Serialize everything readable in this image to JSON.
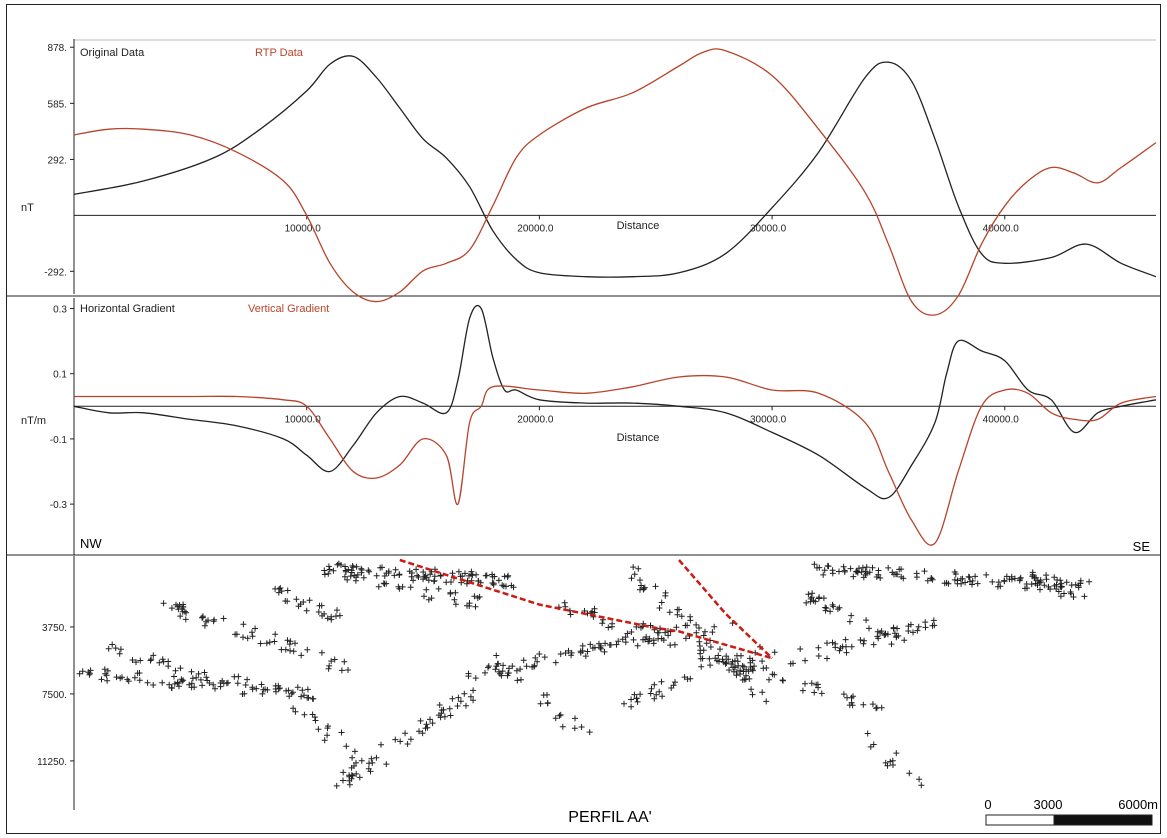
{
  "figure": {
    "caption": "PERFIL AA'",
    "left_label": "NW",
    "right_label": "SE",
    "scale_bar": {
      "ticks": [
        "0",
        "3000",
        "6000m"
      ]
    },
    "colors": {
      "black": "#222222",
      "red": "#b8432b",
      "fault": "#cc1b12"
    }
  },
  "chart_data": [
    {
      "type": "line",
      "xlabel": "Distance",
      "ylabel": "nT",
      "xlim": [
        0,
        46500
      ],
      "ylim": [
        -400,
        900
      ],
      "x_ticks": [
        10000,
        20000,
        30000,
        40000
      ],
      "x_tick_labels": [
        "10000.0",
        "20000.0",
        "30000.0",
        "40000.0"
      ],
      "y_ticks": [
        878,
        585,
        292,
        -292
      ],
      "y_tick_labels": [
        "878.",
        "585.",
        "292.",
        "-292."
      ],
      "series": [
        {
          "name": "Original Data",
          "color": "#222222",
          "x": [
            0,
            3000,
            6000,
            8000,
            10000,
            11000,
            12000,
            13000,
            14000,
            15000,
            16000,
            17000,
            18000,
            19000,
            20000,
            22000,
            24000,
            26000,
            28000,
            30000,
            32000,
            34000,
            35000,
            36000,
            37000,
            38000,
            39000,
            40000,
            42000,
            43500,
            45000,
            46500
          ],
          "y": [
            110,
            180,
            300,
            450,
            650,
            790,
            830,
            720,
            560,
            400,
            300,
            150,
            -80,
            -230,
            -300,
            -320,
            -320,
            -300,
            -200,
            40,
            330,
            720,
            800,
            700,
            400,
            50,
            -200,
            -250,
            -220,
            -150,
            -250,
            -320
          ]
        },
        {
          "name": "RTP Data",
          "color": "#b8432b",
          "x": [
            0,
            1500,
            3000,
            5000,
            7000,
            9000,
            10000,
            11000,
            12000,
            13000,
            14000,
            15000,
            16000,
            17000,
            18000,
            19000,
            20000,
            22000,
            24000,
            26000,
            27000,
            28000,
            30000,
            32000,
            34000,
            35000,
            36000,
            37000,
            38000,
            39000,
            40000,
            41000,
            42000,
            43000,
            44000,
            45000,
            46500
          ],
          "y": [
            420,
            450,
            450,
            420,
            330,
            180,
            0,
            -250,
            -400,
            -450,
            -400,
            -290,
            -250,
            -180,
            50,
            300,
            420,
            560,
            640,
            780,
            850,
            860,
            730,
            450,
            120,
            -150,
            -450,
            -520,
            -420,
            -150,
            50,
            180,
            250,
            220,
            170,
            250,
            380
          ]
        }
      ]
    },
    {
      "type": "line",
      "xlabel": "Distance",
      "ylabel": "nT/m",
      "xlim": [
        0,
        46500
      ],
      "ylim": [
        -0.45,
        0.32
      ],
      "x_ticks": [
        10000,
        20000,
        30000,
        40000
      ],
      "x_tick_labels": [
        "10000.0",
        "20000.0",
        "30000.0",
        "40000.0"
      ],
      "y_ticks": [
        0.3,
        0.1,
        -0.1,
        -0.3
      ],
      "y_tick_labels": [
        "0.3",
        "0.1",
        "-0.1",
        "-0.3"
      ],
      "series": [
        {
          "name": "Horizontal Gradient",
          "color": "#222222",
          "x": [
            0,
            1500,
            3000,
            5000,
            7000,
            9000,
            10000,
            11000,
            12000,
            13000,
            14000,
            15000,
            16000,
            16500,
            17000,
            17500,
            18000,
            18500,
            19000,
            20000,
            22000,
            24000,
            26000,
            28000,
            30000,
            32000,
            34000,
            35000,
            36000,
            37000,
            37500,
            38000,
            39000,
            40000,
            41000,
            42000,
            43000,
            44000,
            45000,
            46500
          ],
          "y": [
            0.0,
            -0.02,
            -0.02,
            -0.04,
            -0.06,
            -0.1,
            -0.15,
            -0.2,
            -0.12,
            -0.02,
            0.03,
            0.01,
            -0.02,
            0.08,
            0.27,
            0.3,
            0.15,
            0.05,
            0.05,
            0.02,
            0.01,
            0.01,
            0.0,
            -0.02,
            -0.08,
            -0.15,
            -0.25,
            -0.28,
            -0.18,
            -0.05,
            0.1,
            0.2,
            0.17,
            0.14,
            0.05,
            0.02,
            -0.08,
            -0.02,
            0.0,
            0.02
          ]
        },
        {
          "name": "Vertical Gradient",
          "color": "#b8432b",
          "x": [
            0,
            1500,
            3000,
            5000,
            7000,
            9000,
            10000,
            11000,
            12000,
            13000,
            14000,
            15000,
            16000,
            16500,
            17000,
            17500,
            18000,
            20000,
            22000,
            24000,
            26000,
            28000,
            30000,
            32000,
            34000,
            35000,
            36000,
            37000,
            38000,
            39000,
            40000,
            41000,
            42000,
            43000,
            44000,
            45000,
            46500
          ],
          "y": [
            0.03,
            0.03,
            0.03,
            0.03,
            0.03,
            0.02,
            0.0,
            -0.1,
            -0.2,
            -0.22,
            -0.18,
            -0.1,
            -0.15,
            -0.3,
            -0.05,
            0.0,
            0.06,
            0.05,
            0.04,
            0.06,
            0.09,
            0.09,
            0.05,
            0.04,
            -0.05,
            -0.2,
            -0.35,
            -0.42,
            -0.2,
            0.0,
            0.05,
            0.04,
            -0.02,
            -0.04,
            -0.04,
            0.01,
            0.03
          ]
        }
      ]
    },
    {
      "type": "scatter",
      "xlim": [
        0,
        46500
      ],
      "ylim": [
        14000,
        0
      ],
      "y_ticks": [
        3750,
        7500,
        11250
      ],
      "y_tick_labels": [
        "3750.",
        "7500.",
        "11250."
      ],
      "clusters": [
        {
          "x0": 300,
          "y0": 6300,
          "x1": 10000,
          "y1": 7500,
          "n": 70
        },
        {
          "x0": 1500,
          "y0": 5000,
          "x1": 10500,
          "y1": 8000,
          "n": 40
        },
        {
          "x0": 4000,
          "y0": 2500,
          "x1": 11500,
          "y1": 6000,
          "n": 55
        },
        {
          "x0": 8500,
          "y0": 1500,
          "x1": 11500,
          "y1": 3500,
          "n": 25
        },
        {
          "x0": 11000,
          "y0": 500,
          "x1": 19000,
          "y1": 1200,
          "n": 90
        },
        {
          "x0": 11500,
          "y0": 700,
          "x1": 17500,
          "y1": 2500,
          "n": 35
        },
        {
          "x0": 9500,
          "y0": 8500,
          "x1": 12500,
          "y1": 11000,
          "n": 15
        },
        {
          "x0": 11500,
          "y0": 12500,
          "x1": 17000,
          "y1": 7500,
          "n": 55
        },
        {
          "x0": 17000,
          "y0": 6500,
          "x1": 28000,
          "y1": 3500,
          "n": 70
        },
        {
          "x0": 18000,
          "y0": 5500,
          "x1": 22000,
          "y1": 10000,
          "n": 25
        },
        {
          "x0": 21000,
          "y0": 2500,
          "x1": 29000,
          "y1": 6000,
          "n": 50
        },
        {
          "x0": 24000,
          "y0": 500,
          "x1": 30000,
          "y1": 8000,
          "n": 50
        },
        {
          "x0": 23500,
          "y0": 8000,
          "x1": 30000,
          "y1": 5000,
          "n": 35
        },
        {
          "x0": 28000,
          "y0": 6500,
          "x1": 37000,
          "y1": 3500,
          "n": 60
        },
        {
          "x0": 32000,
          "y0": 500,
          "x1": 43500,
          "y1": 1500,
          "n": 110
        },
        {
          "x0": 31500,
          "y0": 2000,
          "x1": 35500,
          "y1": 4500,
          "n": 30
        },
        {
          "x0": 30000,
          "y0": 6500,
          "x1": 35000,
          "y1": 8500,
          "n": 25
        },
        {
          "x0": 34000,
          "y0": 9500,
          "x1": 36500,
          "y1": 13000,
          "n": 12
        },
        {
          "x0": 41000,
          "y0": 500,
          "x1": 43500,
          "y1": 2500,
          "n": 20
        }
      ],
      "faults": [
        {
          "x": [
            14000,
            20000,
            25000,
            26000,
            30000
          ],
          "y": [
            0,
            2500,
            3800,
            4000,
            5500
          ]
        },
        {
          "x": [
            26000,
            28000,
            30000
          ],
          "y": [
            0,
            3000,
            5500
          ]
        }
      ]
    }
  ]
}
